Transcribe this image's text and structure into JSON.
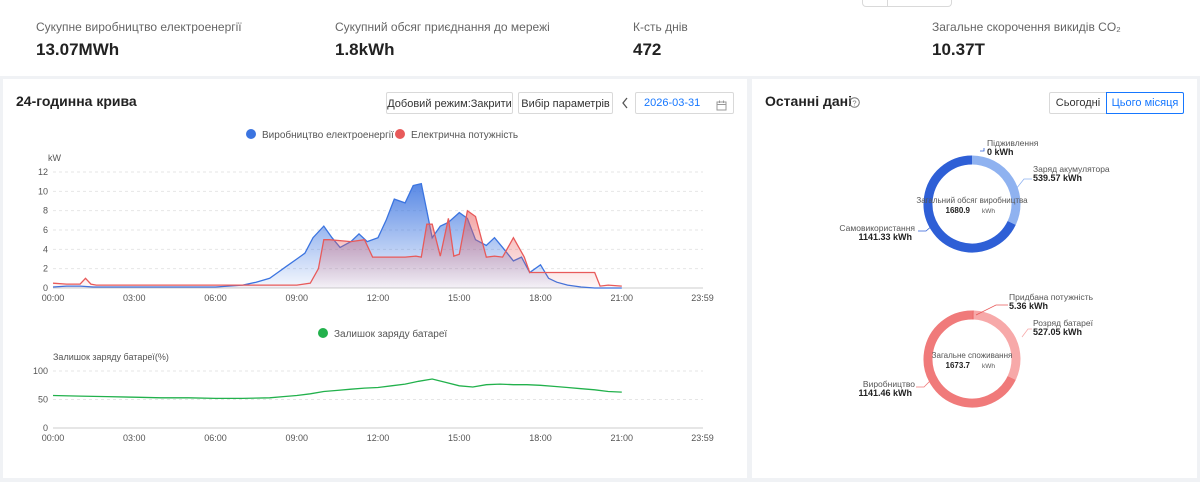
{
  "stats": [
    {
      "label": "Сукупне виробництво електроенергії",
      "value": "13.07MWh"
    },
    {
      "label": "Сукупний обсяг приєднання до мережі",
      "value": "1.8kWh"
    },
    {
      "label": "К-сть днів",
      "value": "472"
    },
    {
      "label": "Загальне скорочення викидів CO₂",
      "value": "10.37T"
    }
  ],
  "curve": {
    "title": "24-годинна крива",
    "mode_button": "Добовий режим:Закрити",
    "params_button": "Вибір параметрів",
    "date": "2026-03-31"
  },
  "recent": {
    "title": "Останні дані",
    "tab_today": "Сьогодні",
    "tab_month": "Цього місяця",
    "donut1": {
      "center_label": "Загальний обсяг виробництва",
      "center_value": "1680.9",
      "center_unit": "kWh",
      "feed_label": "Підживлення",
      "feed_value": "0 kWh",
      "charge_label": "Заряд акумулятора",
      "charge_value": "539.57 kWh",
      "self_label": "Самовикористання",
      "self_value": "1141.33 kWh"
    },
    "donut2": {
      "center_label": "Загальне споживання",
      "center_value": "1673.7",
      "center_unit": "kWh",
      "purchased_label": "Придбана потужність",
      "purchased_value": "5.36 kWh",
      "discharge_label": "Розряд батареї",
      "discharge_value": "527.05 kWh",
      "production_label": "Виробництво",
      "production_value": "1141.46 kWh"
    }
  },
  "colors": {
    "blue": "#3b74e0",
    "red": "#e85a5a",
    "green": "#22b14c",
    "accent": "#1677ff",
    "donut_blue": "#2e5fd6",
    "donut_blue_light": "#8fb2f0",
    "donut_red": "#f07a7a",
    "donut_red_light": "#f7a9a9"
  },
  "chart_data": [
    {
      "type": "area",
      "legend": [
        "Виробництво електроенергії",
        "Електрична потужність"
      ],
      "ylabel": "kW",
      "ylim": [
        0,
        12
      ],
      "yticks": [
        "0",
        "2",
        "4",
        "6",
        "8",
        "10",
        "12"
      ],
      "xticks": [
        "00:00",
        "03:00",
        "06:00",
        "09:00",
        "12:00",
        "15:00",
        "18:00",
        "21:00",
        "23:59"
      ],
      "series": [
        {
          "name": "Виробництво електроенергії",
          "x": [
            0,
            0.5,
            1,
            1.5,
            2,
            3,
            4,
            5,
            6,
            7,
            7.5,
            8,
            8.3,
            8.6,
            9,
            9.3,
            9.6,
            10,
            10.3,
            10.6,
            11,
            11.3,
            11.6,
            12,
            12.3,
            12.6,
            13,
            13.3,
            13.6,
            13.8,
            14,
            14.3,
            14.6,
            15,
            15.3,
            15.6,
            16,
            16.3,
            16.6,
            17,
            17.3,
            17.6,
            18,
            18.3,
            18.6,
            19,
            19.5,
            20,
            21
          ],
          "values": [
            0.1,
            0.2,
            0.2,
            0.1,
            0.1,
            0.1,
            0.1,
            0.1,
            0.1,
            0.3,
            0.6,
            1.0,
            1.6,
            2.2,
            3.0,
            3.6,
            5.2,
            6.4,
            5.2,
            4.2,
            4.8,
            5.6,
            4.8,
            5.2,
            7.0,
            9.2,
            8.8,
            10.6,
            10.8,
            8.0,
            5.2,
            6.4,
            6.8,
            7.8,
            7.2,
            5.0,
            4.4,
            5.2,
            4.2,
            2.8,
            3.2,
            1.6,
            2.4,
            1.0,
            0.6,
            0.3,
            0.1,
            0.0,
            0.0
          ]
        },
        {
          "name": "Електрична потужність",
          "x": [
            0,
            0.5,
            1,
            1.2,
            1.4,
            1.6,
            2,
            3,
            4,
            5,
            6,
            7,
            8,
            8.5,
            9,
            9.5,
            9.8,
            10,
            10.2,
            11,
            11.5,
            11.8,
            12,
            12.3,
            12.6,
            13,
            13.4,
            13.6,
            13.8,
            14,
            14.3,
            14.6,
            14.8,
            15,
            15.3,
            15.6,
            16,
            16.3,
            16.6,
            17,
            17.4,
            17.6,
            18,
            19,
            20,
            20.2,
            20.5,
            21
          ],
          "values": [
            0.5,
            0.4,
            0.4,
            1.0,
            0.4,
            0.3,
            0.3,
            0.3,
            0.3,
            0.3,
            0.3,
            0.3,
            0.3,
            0.3,
            0.3,
            0.5,
            2.0,
            5.0,
            5.0,
            4.8,
            5.0,
            3.2,
            3.2,
            3.2,
            3.2,
            3.2,
            3.3,
            3.2,
            6.6,
            6.6,
            3.3,
            7.2,
            3.3,
            3.5,
            8.0,
            7.4,
            3.2,
            3.3,
            3.2,
            5.2,
            3.2,
            1.6,
            1.6,
            1.6,
            1.6,
            0.2,
            0.3,
            0.2
          ]
        }
      ]
    },
    {
      "type": "line",
      "legend": [
        "Залишок заряду батареї"
      ],
      "ylabel": "Залишок заряду батареї(%)",
      "ylim": [
        0,
        100
      ],
      "yticks": [
        "0",
        "50",
        "100"
      ],
      "xticks": [
        "00:00",
        "03:00",
        "06:00",
        "09:00",
        "12:00",
        "15:00",
        "18:00",
        "21:00",
        "23:59"
      ],
      "series": [
        {
          "name": "Залишок заряду батареї",
          "x": [
            0,
            1,
            2,
            3,
            4,
            5,
            6,
            7,
            8,
            8.5,
            9,
            9.5,
            10,
            10.5,
            11,
            11.5,
            12,
            12.5,
            13,
            13.5,
            14,
            14.5,
            15,
            15.5,
            16,
            16.5,
            17,
            17.5,
            18,
            18.5,
            19,
            19.5,
            20,
            20.5,
            21
          ],
          "values": [
            57,
            56,
            55,
            54,
            53,
            53,
            52,
            52,
            53,
            55,
            57,
            60,
            64,
            66,
            68,
            70,
            71,
            74,
            77,
            82,
            86,
            80,
            74,
            72,
            76,
            77,
            76,
            76,
            75,
            73,
            71,
            69,
            67,
            64,
            63
          ]
        }
      ]
    },
    {
      "type": "pie",
      "title": "Загальний обсяг виробництва",
      "categories": [
        "Підживлення",
        "Заряд акумулятора",
        "Самовикористання"
      ],
      "values": [
        0,
        539.57,
        1141.33
      ]
    },
    {
      "type": "pie",
      "title": "Загальне споживання",
      "categories": [
        "Придбана потужність",
        "Розряд батареї",
        "Виробництво"
      ],
      "values": [
        5.36,
        527.05,
        1141.46
      ]
    }
  ]
}
